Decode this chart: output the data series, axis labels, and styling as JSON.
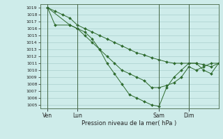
{
  "background_color": "#ceecea",
  "grid_color": "#aacfcc",
  "line_color": "#2d6a2d",
  "title": "Pression niveau de la mer( hPa )",
  "ylim": [
    1004.5,
    1019.5
  ],
  "yticks": [
    1005,
    1006,
    1007,
    1008,
    1009,
    1010,
    1011,
    1012,
    1013,
    1014,
    1015,
    1016,
    1017,
    1018,
    1019
  ],
  "xlim": [
    0,
    144
  ],
  "xtick_labels": [
    "Ven",
    "Lun",
    "Sam",
    "Dim"
  ],
  "xtick_positions": [
    6,
    30,
    96,
    120
  ],
  "vline_positions": [
    6,
    30,
    96,
    120
  ],
  "series1": {
    "x": [
      6,
      12,
      18,
      24,
      30,
      36,
      42,
      48,
      54,
      60,
      66,
      72,
      78,
      84,
      90,
      96,
      102,
      108,
      114,
      120,
      126,
      132,
      138,
      144
    ],
    "y": [
      1019,
      1018.5,
      1018,
      1017.5,
      1016.5,
      1016,
      1015.5,
      1015,
      1014.5,
      1014,
      1013.5,
      1013,
      1012.5,
      1012.2,
      1011.8,
      1011.5,
      1011.2,
      1011,
      1011,
      1011,
      1011,
      1010.8,
      1010.5,
      1011
    ]
  },
  "series2": {
    "x": [
      6,
      12,
      24,
      30,
      36,
      42,
      48,
      54,
      60,
      66,
      72,
      78,
      84,
      90,
      96,
      102,
      108,
      114,
      120,
      126,
      132,
      138,
      144
    ],
    "y": [
      1019,
      1016.5,
      1016.5,
      1016,
      1015.5,
      1014.5,
      1013,
      1011,
      1009.5,
      1008,
      1006.5,
      1006,
      1005.5,
      1005,
      1004.8,
      1007.5,
      1009,
      1010,
      1011,
      1011,
      1010,
      1009.5,
      1011
    ]
  },
  "series3": {
    "x": [
      6,
      24,
      30,
      36,
      42,
      48,
      54,
      60,
      66,
      72,
      78,
      84,
      90,
      96,
      102,
      108,
      114,
      120,
      126,
      132,
      138,
      144
    ],
    "y": [
      1019,
      1016.5,
      1016,
      1015,
      1014,
      1013,
      1012,
      1011,
      1010,
      1009.5,
      1009,
      1008.5,
      1007.5,
      1007.5,
      1007.8,
      1008.2,
      1009,
      1010.5,
      1010,
      1010.5,
      1011,
      1011
    ]
  }
}
